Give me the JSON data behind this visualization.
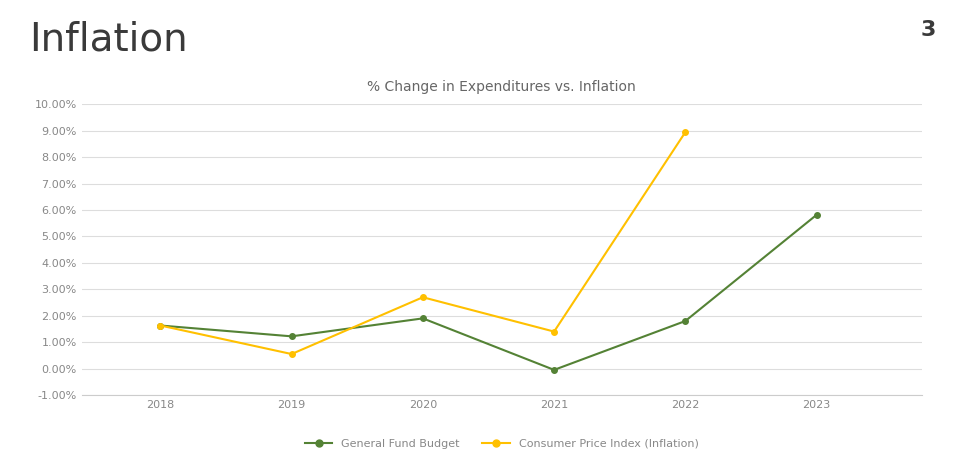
{
  "title": "Inflation",
  "title_number": "3",
  "chart_title": "% Change in Expenditures vs. Inflation",
  "bar_color": "#1F3864",
  "years": [
    2018,
    2019,
    2020,
    2021,
    2022,
    2023
  ],
  "general_fund": [
    0.0163,
    0.0122,
    0.019,
    -0.0005,
    0.018,
    0.0582
  ],
  "cpi": [
    0.0163,
    0.0055,
    0.027,
    0.014,
    0.0895
  ],
  "cpi_years": [
    2018,
    2019,
    2020,
    2021,
    2022
  ],
  "green_color": "#548235",
  "gold_color": "#FFC000",
  "ylim_min": -0.01,
  "ylim_max": 0.1,
  "yticks": [
    -0.01,
    0.0,
    0.01,
    0.02,
    0.03,
    0.04,
    0.05,
    0.06,
    0.07,
    0.08,
    0.09,
    0.1
  ],
  "legend_label_green": "General Fund Budget",
  "legend_label_gold": "Consumer Price Index (Inflation)",
  "background_color": "#ffffff",
  "title_fontsize": 28,
  "title_color": "#3a3a3a",
  "number_fontsize": 16,
  "chart_title_fontsize": 10,
  "chart_title_color": "#666666",
  "tick_label_color": "#888888",
  "tick_label_size": 8,
  "grid_color": "#dddddd",
  "spine_color": "#cccccc"
}
